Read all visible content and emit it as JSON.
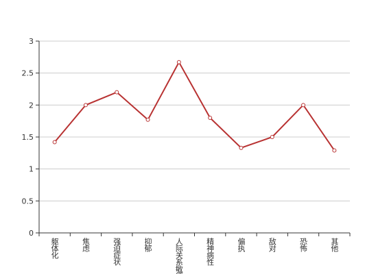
{
  "chart_data": {
    "type": "line",
    "categories": [
      "躯体化",
      "焦虑",
      "强迫症状",
      "抑郁",
      "人际关系敏感",
      "精神病性",
      "偏执",
      "敌对",
      "恐怖",
      "其他"
    ],
    "values": [
      1.42,
      2.0,
      2.2,
      1.77,
      2.67,
      1.8,
      1.33,
      1.5,
      2.0,
      1.29
    ],
    "color": "#b83232",
    "ylim": [
      0,
      3
    ],
    "yticks": [
      0,
      0.5,
      1,
      1.5,
      2,
      2.5,
      3
    ],
    "grid": true
  }
}
